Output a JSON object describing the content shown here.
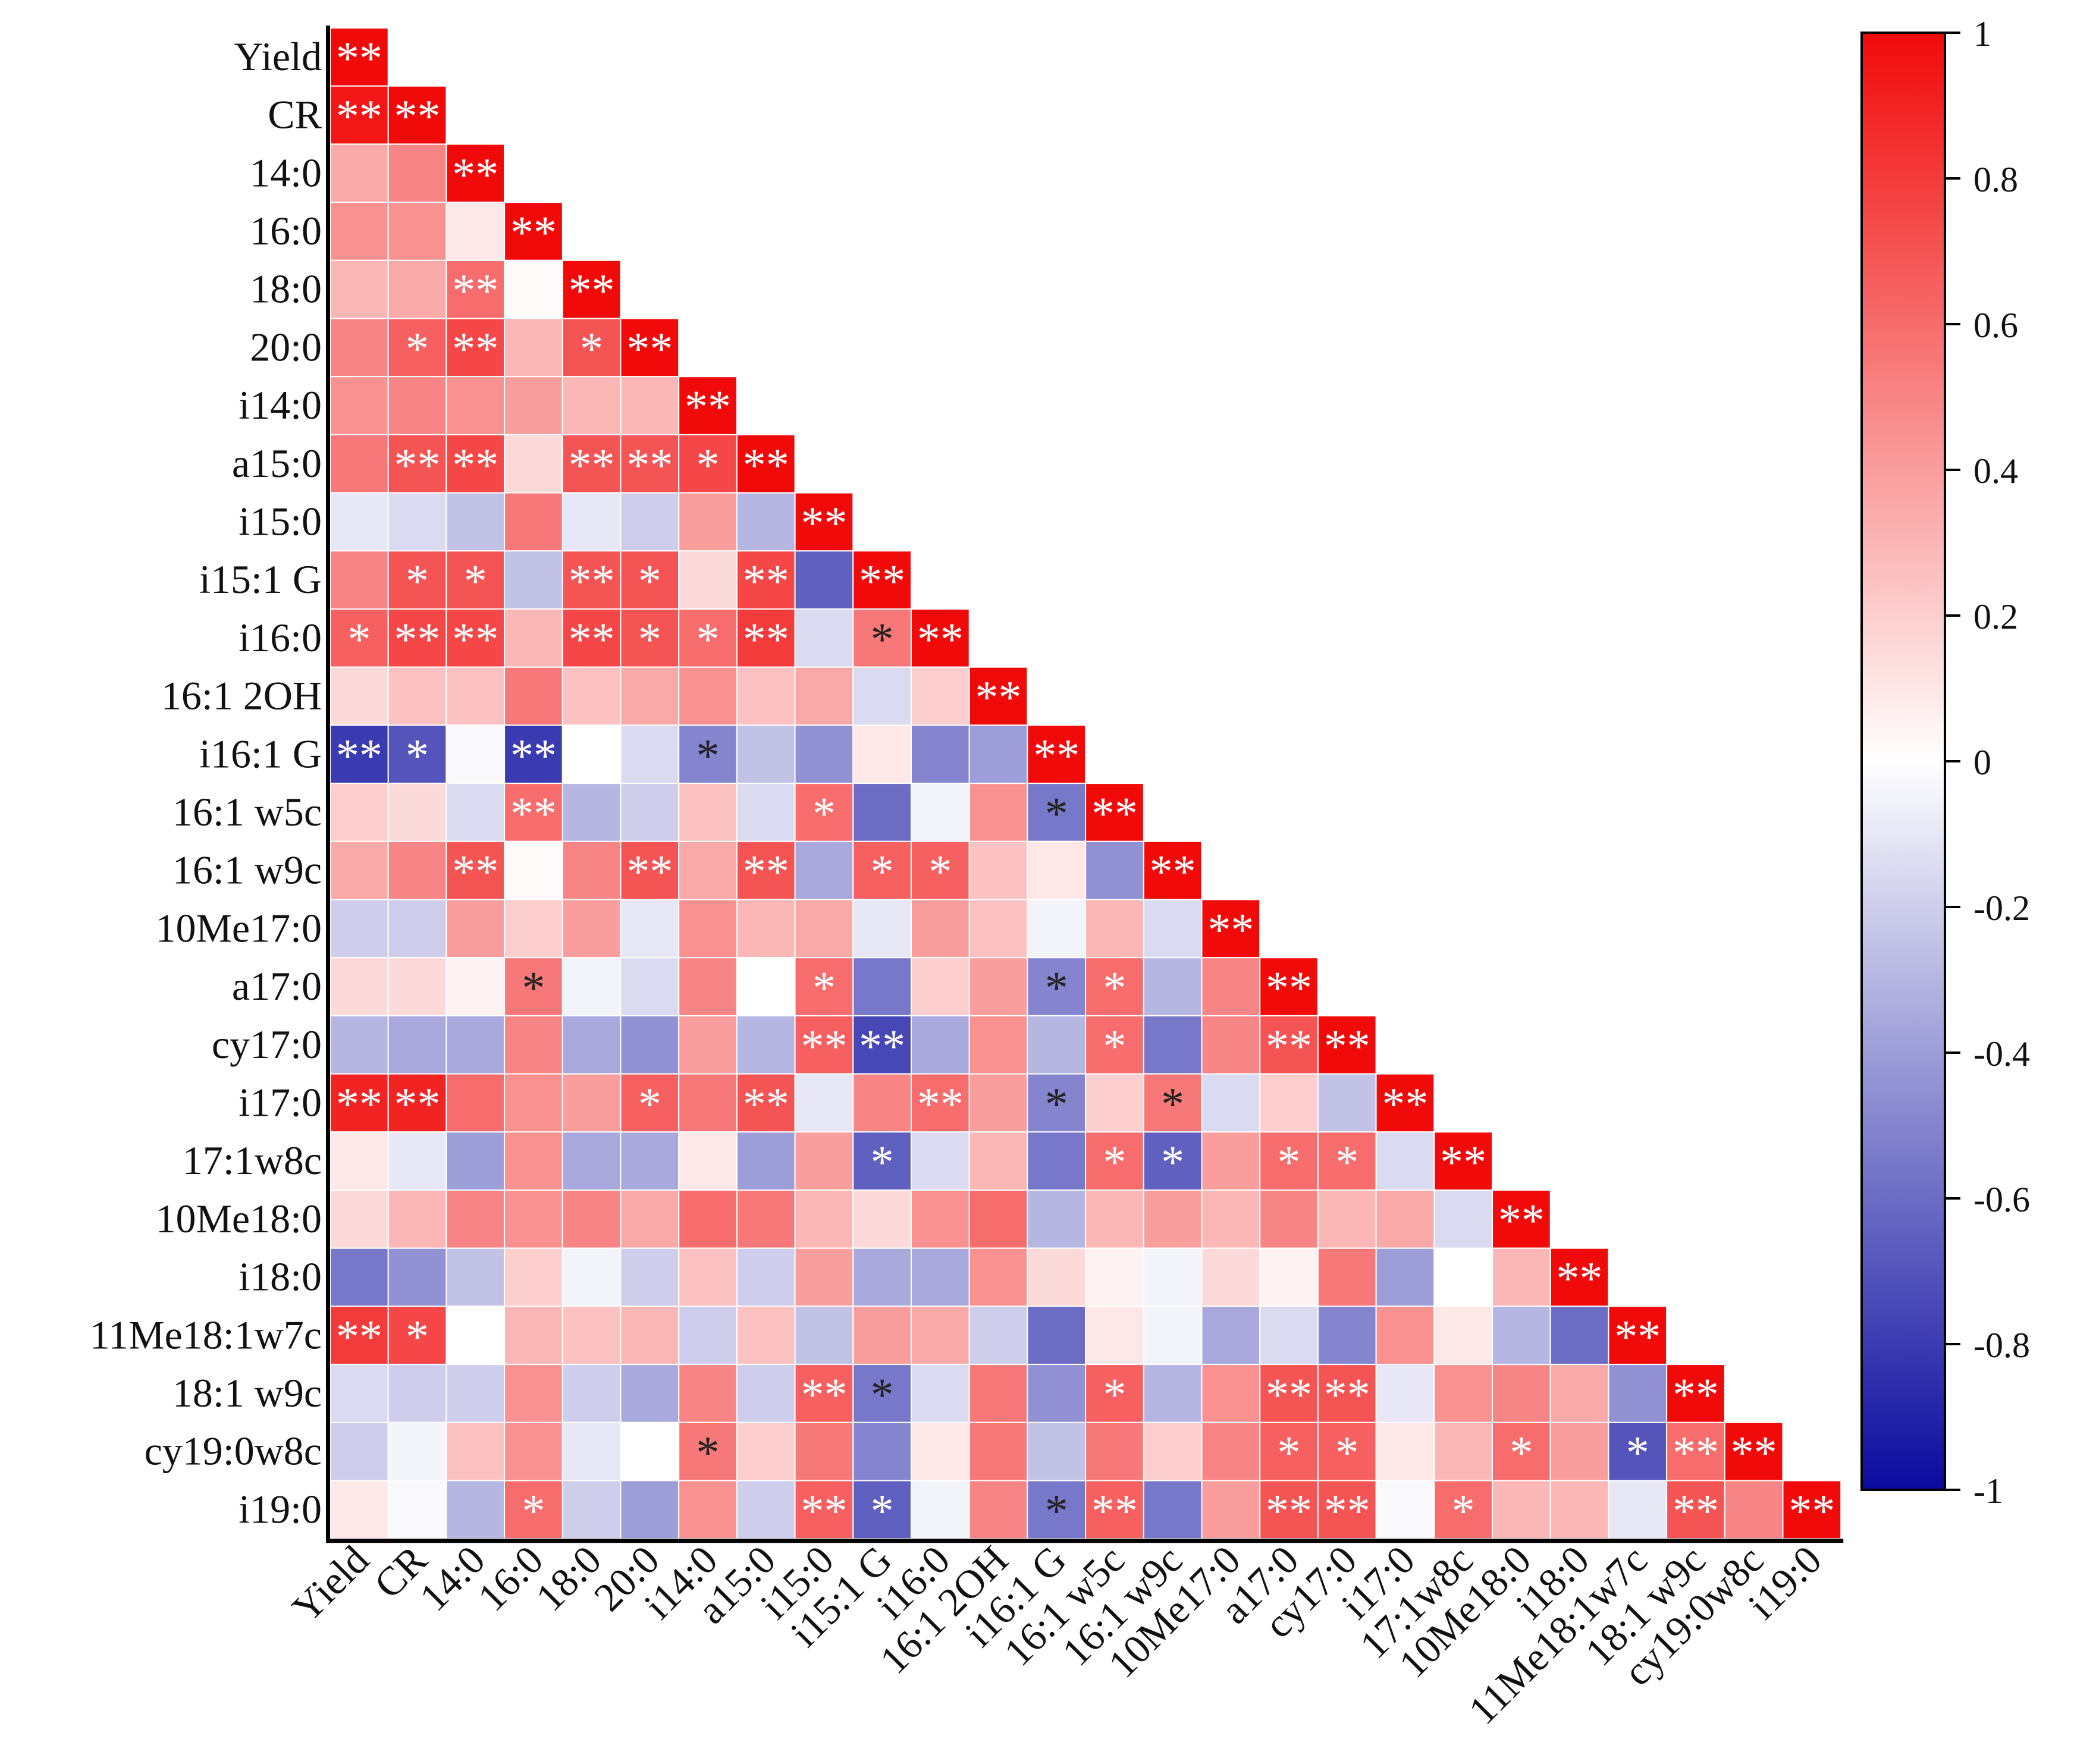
{
  "chart_data": {
    "type": "heatmap",
    "title": "",
    "xlabel": "",
    "ylabel": "",
    "shape": "lower-triangular correlation matrix",
    "variables": [
      "Yield",
      "CR",
      "14:0",
      "16:0",
      "18:0",
      "20:0",
      "i14:0",
      "a15:0",
      "i15:0",
      "i15:1 G",
      "i16:0",
      "16:1 2OH",
      "i16:1 G",
      "16:1 w5c",
      "16:1 w9c",
      "10Me17:0",
      "a17:0",
      "cy17:0",
      "i17:0",
      "17:1w8c",
      "10Me18:0",
      "i18:0",
      "11Me18:1w7c",
      "18:1 w9c",
      "cy19:0w8c",
      "i19:0"
    ],
    "values": [
      [
        1
      ],
      [
        0.95,
        1
      ],
      [
        0.35,
        0.5,
        1
      ],
      [
        0.45,
        0.45,
        0.1,
        1
      ],
      [
        0.3,
        0.35,
        0.6,
        0.02,
        1
      ],
      [
        0.5,
        0.65,
        0.75,
        0.3,
        0.7,
        1
      ],
      [
        0.45,
        0.5,
        0.45,
        0.4,
        0.3,
        0.3,
        1
      ],
      [
        0.55,
        0.7,
        0.75,
        0.15,
        0.7,
        0.7,
        0.75,
        1
      ],
      [
        -0.1,
        -0.15,
        -0.25,
        0.55,
        -0.1,
        -0.2,
        0.4,
        -0.3,
        1
      ],
      [
        0.5,
        0.7,
        0.7,
        -0.25,
        0.7,
        0.7,
        0.15,
        0.75,
        -0.65,
        1
      ],
      [
        0.65,
        0.75,
        0.75,
        0.3,
        0.75,
        0.7,
        0.6,
        0.8,
        -0.15,
        0.55,
        1
      ],
      [
        0.15,
        0.25,
        0.25,
        0.55,
        0.25,
        0.35,
        0.45,
        0.25,
        0.35,
        -0.15,
        0.2,
        1
      ],
      [
        -0.8,
        -0.7,
        -0.02,
        -0.8,
        0.0,
        -0.15,
        -0.5,
        -0.25,
        -0.45,
        0.1,
        -0.5,
        -0.4,
        1
      ],
      [
        0.2,
        0.15,
        -0.15,
        0.6,
        -0.3,
        -0.2,
        0.25,
        -0.15,
        0.6,
        -0.6,
        -0.05,
        0.45,
        -0.55,
        1
      ],
      [
        0.35,
        0.5,
        0.7,
        0.02,
        0.5,
        0.7,
        0.35,
        0.7,
        -0.35,
        0.65,
        0.65,
        0.25,
        0.1,
        -0.45,
        1
      ],
      [
        -0.2,
        -0.2,
        0.4,
        0.2,
        0.4,
        -0.1,
        0.45,
        0.3,
        0.35,
        -0.1,
        0.4,
        0.25,
        -0.05,
        0.3,
        -0.15,
        1
      ],
      [
        0.15,
        0.15,
        0.05,
        0.55,
        -0.05,
        -0.15,
        0.5,
        0.0,
        0.6,
        -0.55,
        0.2,
        0.4,
        -0.5,
        0.6,
        -0.3,
        0.5,
        1
      ],
      [
        -0.3,
        -0.35,
        -0.35,
        0.5,
        -0.35,
        -0.45,
        0.4,
        -0.3,
        0.65,
        -0.75,
        -0.35,
        0.45,
        -0.3,
        0.6,
        -0.55,
        0.5,
        0.7,
        1
      ],
      [
        0.9,
        0.9,
        0.6,
        0.45,
        0.4,
        0.65,
        0.55,
        0.7,
        -0.1,
        0.5,
        0.6,
        0.4,
        -0.5,
        0.2,
        0.55,
        -0.15,
        0.2,
        -0.25,
        1
      ],
      [
        0.1,
        -0.1,
        -0.4,
        0.45,
        -0.35,
        -0.35,
        0.1,
        -0.4,
        0.4,
        -0.65,
        -0.15,
        0.3,
        -0.55,
        0.6,
        -0.65,
        0.4,
        0.6,
        0.6,
        -0.15,
        1
      ],
      [
        0.15,
        0.3,
        0.5,
        0.45,
        0.5,
        0.35,
        0.6,
        0.55,
        0.3,
        0.15,
        0.45,
        0.6,
        -0.3,
        0.3,
        0.4,
        0.3,
        0.5,
        0.3,
        0.35,
        -0.15,
        1
      ],
      [
        -0.55,
        -0.45,
        -0.25,
        0.2,
        -0.05,
        -0.2,
        0.25,
        -0.2,
        0.4,
        -0.35,
        -0.35,
        0.45,
        0.15,
        0.05,
        -0.05,
        0.15,
        0.05,
        0.55,
        -0.4,
        0.0,
        0.3,
        1
      ],
      [
        0.8,
        0.75,
        0.0,
        0.3,
        0.25,
        0.3,
        -0.2,
        0.25,
        -0.25,
        0.4,
        0.35,
        -0.2,
        -0.6,
        0.1,
        -0.05,
        -0.35,
        -0.15,
        -0.5,
        0.45,
        0.1,
        -0.3,
        -0.6,
        1
      ],
      [
        -0.15,
        -0.2,
        -0.2,
        0.45,
        -0.2,
        -0.35,
        0.5,
        -0.2,
        0.65,
        -0.55,
        -0.15,
        0.55,
        -0.45,
        0.65,
        -0.3,
        0.45,
        0.7,
        0.7,
        -0.1,
        0.45,
        0.5,
        0.35,
        -0.45,
        1
      ],
      [
        -0.2,
        -0.05,
        0.25,
        0.45,
        -0.1,
        0.0,
        0.55,
        0.2,
        0.55,
        -0.5,
        0.1,
        0.55,
        -0.25,
        0.55,
        0.2,
        0.5,
        0.65,
        0.65,
        0.1,
        0.3,
        0.6,
        0.4,
        -0.7,
        0.6,
        1
      ],
      [
        0.1,
        -0.02,
        -0.3,
        0.6,
        -0.2,
        -0.4,
        0.45,
        -0.2,
        0.65,
        -0.65,
        -0.05,
        0.5,
        -0.55,
        0.65,
        -0.55,
        0.4,
        0.7,
        0.7,
        -0.02,
        0.6,
        0.3,
        0.3,
        -0.1,
        0.7,
        0.5,
        1
      ]
    ],
    "significance": [
      [
        "**"
      ],
      [
        "**",
        "**"
      ],
      [
        "",
        "",
        "**"
      ],
      [
        "",
        "",
        "",
        "**"
      ],
      [
        "",
        "",
        "**",
        "",
        "**"
      ],
      [
        "",
        "*",
        "**",
        "",
        "*",
        "**"
      ],
      [
        "",
        "",
        "",
        "",
        "",
        "",
        "**"
      ],
      [
        "",
        "**",
        "**",
        "",
        "**",
        "**",
        "*",
        "**"
      ],
      [
        "",
        "",
        "",
        "",
        "",
        "",
        "",
        "",
        "**"
      ],
      [
        "",
        "*",
        "*",
        "",
        "**",
        "*",
        "",
        "**",
        "",
        "**"
      ],
      [
        "*",
        "**",
        "**",
        "",
        "**",
        "*",
        "*",
        "**",
        "",
        "*",
        "**"
      ],
      [
        "",
        "",
        "",
        "",
        "",
        "",
        "",
        "",
        "",
        "",
        "",
        "**"
      ],
      [
        "**",
        "*",
        "",
        "**",
        "",
        "",
        "*",
        "",
        "",
        "",
        "",
        "",
        "**"
      ],
      [
        "",
        "",
        "",
        "**",
        "",
        "",
        "",
        "",
        "*",
        "",
        "",
        "",
        "*",
        "**"
      ],
      [
        "",
        "",
        "**",
        "",
        "",
        "**",
        "",
        "**",
        "",
        "*",
        "*",
        "",
        "",
        "",
        "**"
      ],
      [
        "",
        "",
        "",
        "",
        "",
        "",
        "",
        "",
        "",
        "",
        "",
        "",
        "",
        "",
        "",
        "**"
      ],
      [
        "",
        "",
        "",
        "*",
        "",
        "",
        "",
        "",
        "*",
        "",
        "",
        "",
        "*",
        "*",
        "",
        "",
        "**"
      ],
      [
        "",
        "",
        "",
        "",
        "",
        "",
        "",
        "",
        "**",
        "**",
        "",
        "",
        "",
        "*",
        "",
        "",
        "**",
        "**"
      ],
      [
        "**",
        "**",
        "",
        "",
        "",
        "*",
        "",
        "**",
        "",
        "",
        "**",
        "",
        "*",
        "",
        "*",
        "",
        "",
        "",
        "**"
      ],
      [
        "",
        "",
        "",
        "",
        "",
        "",
        "",
        "",
        "",
        "*",
        "",
        "",
        "",
        "*",
        "*",
        "",
        "*",
        "*",
        "",
        "**"
      ],
      [
        "",
        "",
        "",
        "",
        "",
        "",
        "",
        "",
        "",
        "",
        "",
        "",
        "",
        "",
        "",
        "",
        "",
        "",
        "",
        "",
        "**"
      ],
      [
        "",
        "",
        "",
        "",
        "",
        "",
        "",
        "",
        "",
        "",
        "",
        "",
        "",
        "",
        "",
        "",
        "",
        "",
        "",
        "",
        "",
        "**"
      ],
      [
        "**",
        "*",
        "",
        "",
        "",
        "",
        "",
        "",
        "",
        "",
        "",
        "",
        "",
        "",
        "",
        "",
        "",
        "",
        "",
        "",
        "",
        "",
        "**"
      ],
      [
        "",
        "",
        "",
        "",
        "",
        "",
        "",
        "",
        "**",
        "*",
        "",
        "",
        "",
        "*",
        "",
        "",
        "**",
        "**",
        "",
        "",
        "",
        "",
        "",
        "**"
      ],
      [
        "",
        "",
        "",
        "",
        "",
        "",
        "*",
        "",
        "",
        "",
        "",
        "",
        "",
        "",
        "",
        "",
        "*",
        "*",
        "",
        "",
        "*",
        "",
        "*",
        "**",
        "**"
      ],
      [
        "",
        "",
        "",
        "*",
        "",
        "",
        "",
        "",
        "**",
        "*",
        "",
        "",
        "*",
        "**",
        "",
        "",
        "**",
        "**",
        "",
        "*",
        "",
        "",
        "",
        "**",
        "",
        "**"
      ]
    ],
    "colorbar": {
      "range": [
        -1,
        1
      ],
      "ticks": [
        "1",
        "0.8",
        "0.6",
        "0.4",
        "0.2",
        "0",
        "-0.2",
        "-0.4",
        "-0.6",
        "-0.8",
        "-1"
      ],
      "colors": {
        "low": "#0a0a9e",
        "mid": "#ffffff",
        "high": "#f10a0a"
      }
    }
  }
}
